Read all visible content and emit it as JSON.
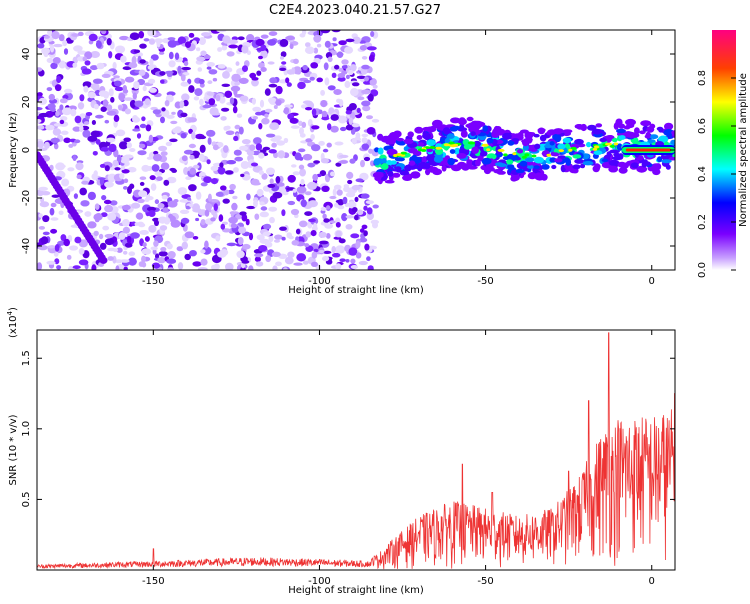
{
  "title": "C2E4.2023.040.21.57.G27",
  "chart_data": [
    {
      "type": "heatmap",
      "xlabel": "Height of straight line (km)",
      "ylabel": "Frequency (Hz)",
      "xlim": [
        -185,
        7
      ],
      "ylim": [
        -50,
        50
      ],
      "xticks": [
        -150,
        -100,
        -50,
        0
      ],
      "yticks": [
        -40,
        -20,
        0,
        20,
        40
      ],
      "colorbar": {
        "label": "Normalized spectral amplitude",
        "range": [
          0,
          1
        ],
        "ticks": [
          0.0,
          0.2,
          0.4,
          0.6,
          0.8
        ],
        "tick_labels": [
          "0.0",
          "0.2",
          "0.4",
          "0.6",
          "0.8"
        ],
        "colors": [
          "#ffffff",
          "#7a00ff",
          "#0000ff",
          "#00ffff",
          "#00ff00",
          "#ffff00",
          "#ff0000",
          "#ff0080"
        ]
      },
      "features": {
        "noise_region_x": [
          -185,
          -83
        ],
        "signal_band": [
          {
            "x": -83,
            "y": -5
          },
          {
            "x": -70,
            "y": 0
          },
          {
            "x": -55,
            "y": 3
          },
          {
            "x": -40,
            "y": -3
          },
          {
            "x": -25,
            "y": 0
          },
          {
            "x": -10,
            "y": 2
          },
          {
            "x": 7,
            "y": 0
          }
        ],
        "peak_line": {
          "x_start": -9,
          "x_end": 7,
          "y": 0
        }
      }
    },
    {
      "type": "line",
      "xlabel": "Height of straight line (km)",
      "ylabel": "SNR (10 * v/v)",
      "scale_label": "(x10",
      "scale_exponent": "4",
      "scale_close": ")",
      "xlim": [
        -185,
        7
      ],
      "ylim": [
        0,
        1.7
      ],
      "xticks": [
        -150,
        -100,
        -50,
        0
      ],
      "yticks": [
        0.5,
        1.0,
        1.5
      ],
      "ytick_labels": [
        "0.5",
        "1.0",
        "1.5"
      ],
      "color": "#ee3333",
      "envelope": [
        {
          "x": -185,
          "y": 0.03
        },
        {
          "x": -150,
          "y": 0.05
        },
        {
          "x": -120,
          "y": 0.07
        },
        {
          "x": -100,
          "y": 0.06
        },
        {
          "x": -85,
          "y": 0.05
        },
        {
          "x": -78,
          "y": 0.2
        },
        {
          "x": -70,
          "y": 0.35
        },
        {
          "x": -60,
          "y": 0.45
        },
        {
          "x": -50,
          "y": 0.4
        },
        {
          "x": -40,
          "y": 0.35
        },
        {
          "x": -30,
          "y": 0.4
        },
        {
          "x": -22,
          "y": 0.6
        },
        {
          "x": -15,
          "y": 0.9
        },
        {
          "x": -10,
          "y": 1.0
        },
        {
          "x": -5,
          "y": 1.0
        },
        {
          "x": 0,
          "y": 1.0
        },
        {
          "x": 7,
          "y": 1.05
        }
      ],
      "peaks": [
        {
          "x": -150,
          "y": 0.15
        },
        {
          "x": -57,
          "y": 0.75
        },
        {
          "x": -48,
          "y": 0.55
        },
        {
          "x": -25,
          "y": 0.7
        },
        {
          "x": -19,
          "y": 1.2
        },
        {
          "x": -13,
          "y": 1.68
        },
        {
          "x": 7,
          "y": 1.25
        }
      ]
    }
  ]
}
